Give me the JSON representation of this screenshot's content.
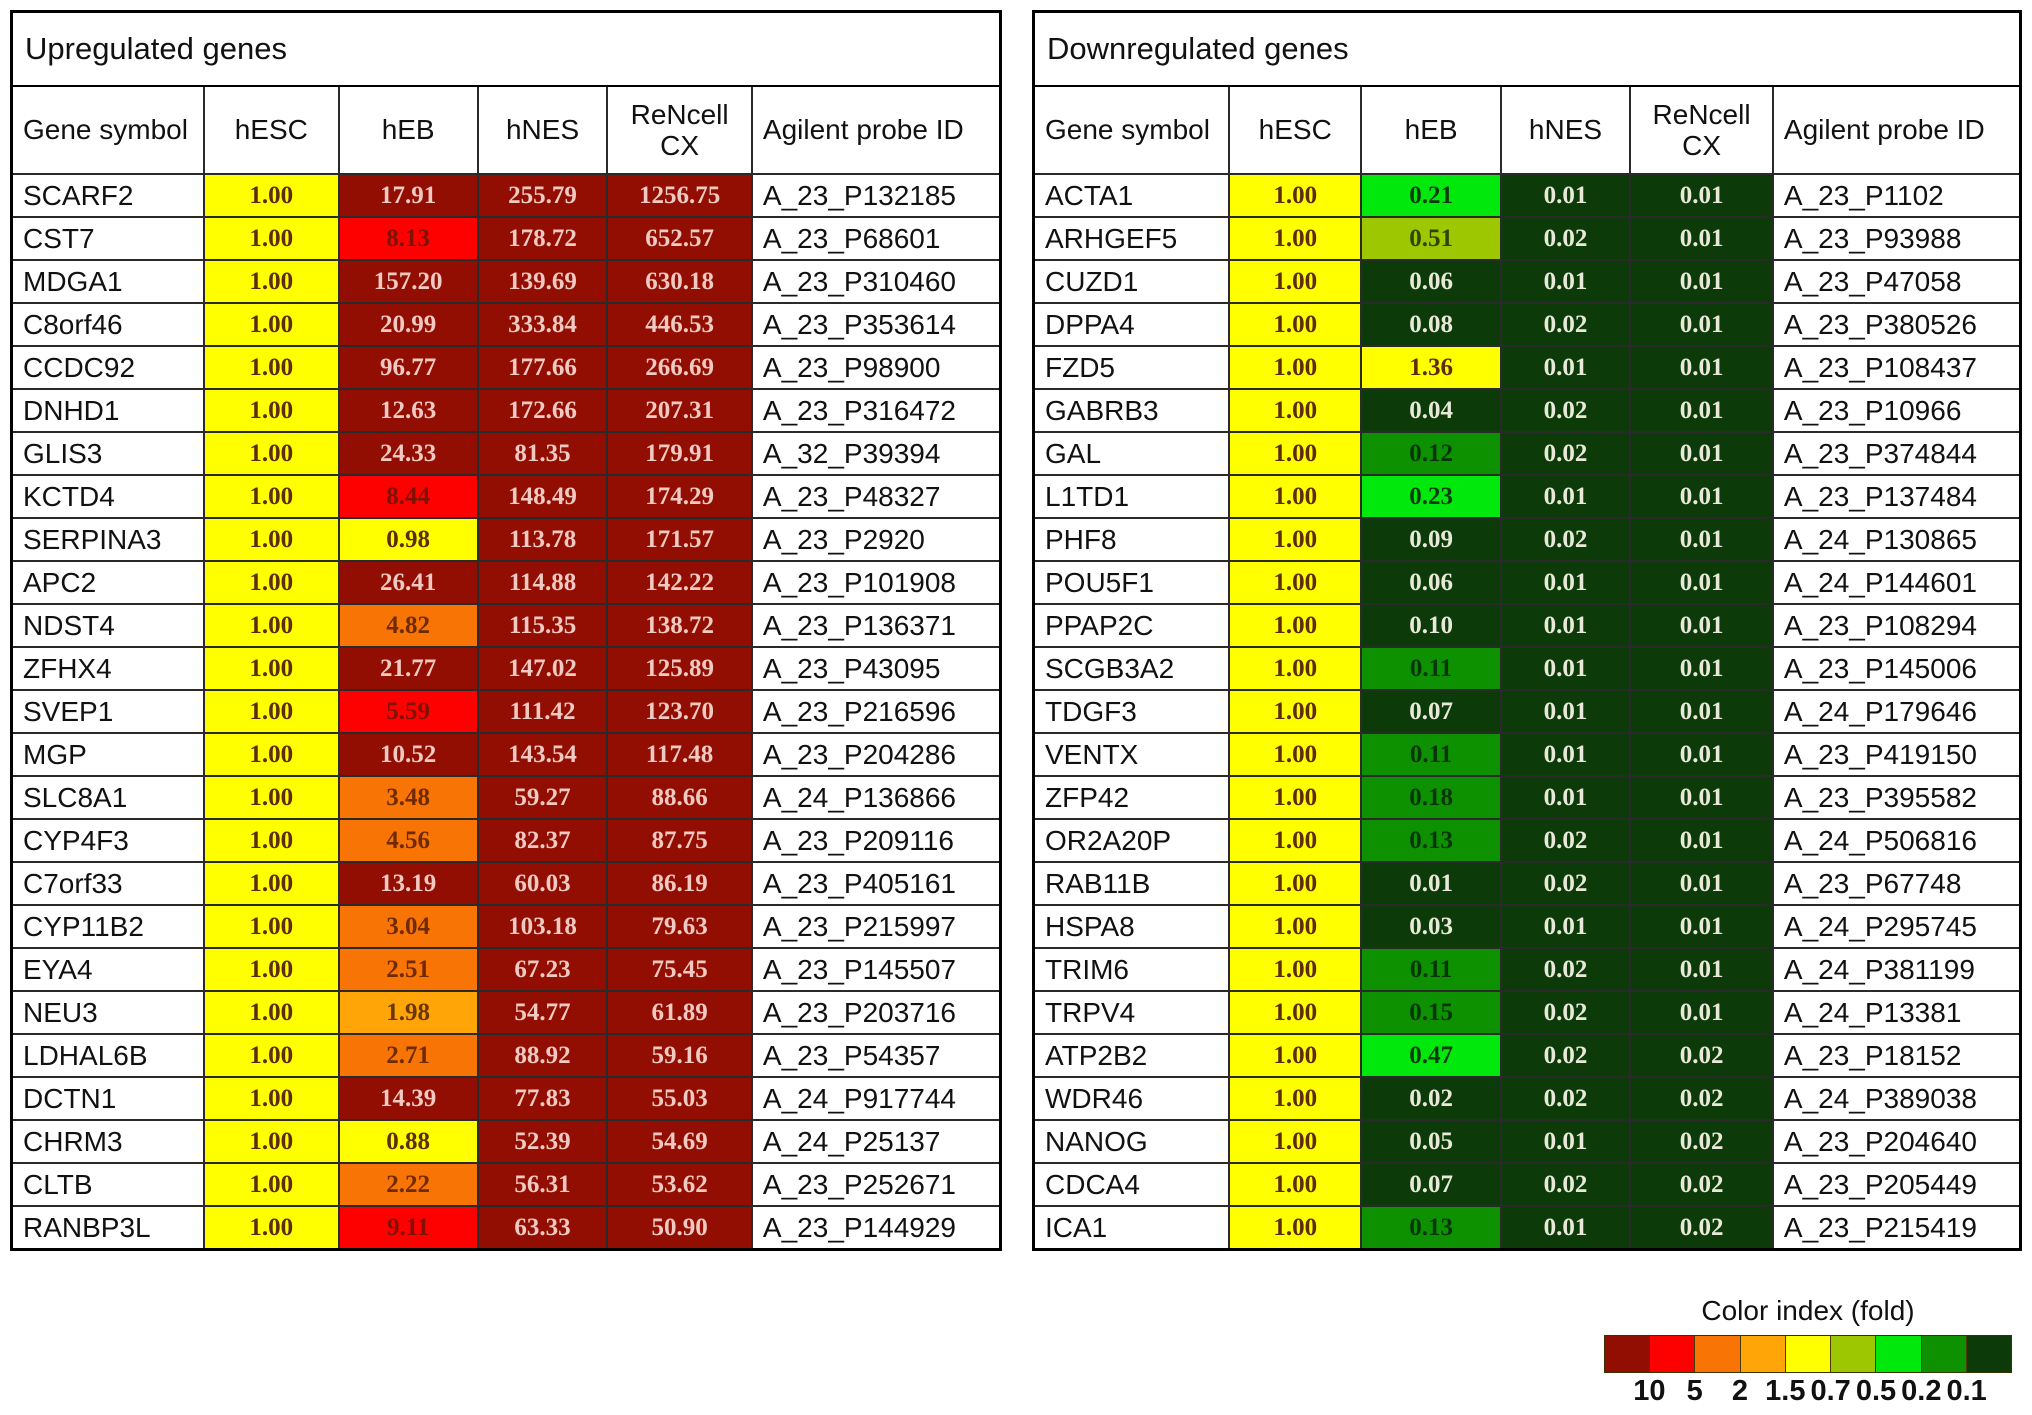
{
  "chart_data": [
    {
      "type": "heatmap",
      "title": "Upregulated genes",
      "columns": [
        "Gene symbol",
        "hESC",
        "hEB",
        "hNES",
        "ReNcell CX",
        "Agilent probe ID"
      ],
      "rows": [
        [
          "SCARF2",
          "1.00",
          "17.91",
          "255.79",
          "1256.75",
          "A_23_P132185"
        ],
        [
          "CST7",
          "1.00",
          "8.13",
          "178.72",
          "652.57",
          "A_23_P68601"
        ],
        [
          "MDGA1",
          "1.00",
          "157.20",
          "139.69",
          "630.18",
          "A_23_P310460"
        ],
        [
          "C8orf46",
          "1.00",
          "20.99",
          "333.84",
          "446.53",
          "A_23_P353614"
        ],
        [
          "CCDC92",
          "1.00",
          "96.77",
          "177.66",
          "266.69",
          "A_23_P98900"
        ],
        [
          "DNHD1",
          "1.00",
          "12.63",
          "172.66",
          "207.31",
          "A_23_P316472"
        ],
        [
          "GLIS3",
          "1.00",
          "24.33",
          "81.35",
          "179.91",
          "A_32_P39394"
        ],
        [
          "KCTD4",
          "1.00",
          "8.44",
          "148.49",
          "174.29",
          "A_23_P48327"
        ],
        [
          "SERPINA3",
          "1.00",
          "0.98",
          "113.78",
          "171.57",
          "A_23_P2920"
        ],
        [
          "APC2",
          "1.00",
          "26.41",
          "114.88",
          "142.22",
          "A_23_P101908"
        ],
        [
          "NDST4",
          "1.00",
          "4.82",
          "115.35",
          "138.72",
          "A_23_P136371"
        ],
        [
          "ZFHX4",
          "1.00",
          "21.77",
          "147.02",
          "125.89",
          "A_23_P43095"
        ],
        [
          "SVEP1",
          "1.00",
          "5.59",
          "111.42",
          "123.70",
          "A_23_P216596"
        ],
        [
          "MGP",
          "1.00",
          "10.52",
          "143.54",
          "117.48",
          "A_23_P204286"
        ],
        [
          "SLC8A1",
          "1.00",
          "3.48",
          "59.27",
          "88.66",
          "A_24_P136866"
        ],
        [
          "CYP4F3",
          "1.00",
          "4.56",
          "82.37",
          "87.75",
          "A_23_P209116"
        ],
        [
          "C7orf33",
          "1.00",
          "13.19",
          "60.03",
          "86.19",
          "A_23_P405161"
        ],
        [
          "CYP11B2",
          "1.00",
          "3.04",
          "103.18",
          "79.63",
          "A_23_P215997"
        ],
        [
          "EYA4",
          "1.00",
          "2.51",
          "67.23",
          "75.45",
          "A_23_P145507"
        ],
        [
          "NEU3",
          "1.00",
          "1.98",
          "54.77",
          "61.89",
          "A_23_P203716"
        ],
        [
          "LDHAL6B",
          "1.00",
          "2.71",
          "88.92",
          "59.16",
          "A_23_P54357"
        ],
        [
          "DCTN1",
          "1.00",
          "14.39",
          "77.83",
          "55.03",
          "A_24_P917744"
        ],
        [
          "CHRM3",
          "1.00",
          "0.88",
          "52.39",
          "54.69",
          "A_24_P25137"
        ],
        [
          "CLTB",
          "1.00",
          "2.22",
          "56.31",
          "53.62",
          "A_23_P252671"
        ],
        [
          "RANBP3L",
          "1.00",
          "9.11",
          "63.33",
          "50.90",
          "A_23_P144929"
        ]
      ]
    },
    {
      "type": "heatmap",
      "title": "Downregulated genes",
      "columns": [
        "Gene symbol",
        "hESC",
        "hEB",
        "hNES",
        "ReNcell CX",
        "Agilent probe ID"
      ],
      "rows": [
        [
          "ACTA1",
          "1.00",
          "0.21",
          "0.01",
          "0.01",
          "A_23_P1102"
        ],
        [
          "ARHGEF5",
          "1.00",
          "0.51",
          "0.02",
          "0.01",
          "A_23_P93988"
        ],
        [
          "CUZD1",
          "1.00",
          "0.06",
          "0.01",
          "0.01",
          "A_23_P47058"
        ],
        [
          "DPPA4",
          "1.00",
          "0.08",
          "0.02",
          "0.01",
          "A_23_P380526"
        ],
        [
          "FZD5",
          "1.00",
          "1.36",
          "0.01",
          "0.01",
          "A_23_P108437"
        ],
        [
          "GABRB3",
          "1.00",
          "0.04",
          "0.02",
          "0.01",
          "A_23_P10966"
        ],
        [
          "GAL",
          "1.00",
          "0.12",
          "0.02",
          "0.01",
          "A_23_P374844"
        ],
        [
          "L1TD1",
          "1.00",
          "0.23",
          "0.01",
          "0.01",
          "A_23_P137484"
        ],
        [
          "PHF8",
          "1.00",
          "0.09",
          "0.02",
          "0.01",
          "A_24_P130865"
        ],
        [
          "POU5F1",
          "1.00",
          "0.06",
          "0.01",
          "0.01",
          "A_24_P144601"
        ],
        [
          "PPAP2C",
          "1.00",
          "0.10",
          "0.01",
          "0.01",
          "A_23_P108294"
        ],
        [
          "SCGB3A2",
          "1.00",
          "0.11",
          "0.01",
          "0.01",
          "A_23_P145006"
        ],
        [
          "TDGF3",
          "1.00",
          "0.07",
          "0.01",
          "0.01",
          "A_24_P179646"
        ],
        [
          "VENTX",
          "1.00",
          "0.11",
          "0.01",
          "0.01",
          "A_23_P419150"
        ],
        [
          "ZFP42",
          "1.00",
          "0.18",
          "0.01",
          "0.01",
          "A_23_P395582"
        ],
        [
          "OR2A20P",
          "1.00",
          "0.13",
          "0.02",
          "0.01",
          "A_24_P506816"
        ],
        [
          "RAB11B",
          "1.00",
          "0.01",
          "0.02",
          "0.01",
          "A_23_P67748"
        ],
        [
          "HSPA8",
          "1.00",
          "0.03",
          "0.01",
          "0.01",
          "A_24_P295745"
        ],
        [
          "TRIM6",
          "1.00",
          "0.11",
          "0.02",
          "0.01",
          "A_24_P381199"
        ],
        [
          "TRPV4",
          "1.00",
          "0.15",
          "0.02",
          "0.01",
          "A_24_P13381"
        ],
        [
          "ATP2B2",
          "1.00",
          "0.47",
          "0.02",
          "0.02",
          "A_23_P18152"
        ],
        [
          "WDR46",
          "1.00",
          "0.02",
          "0.02",
          "0.02",
          "A_24_P389038"
        ],
        [
          "NANOG",
          "1.00",
          "0.05",
          "0.01",
          "0.02",
          "A_23_P204640"
        ],
        [
          "CDCA4",
          "1.00",
          "0.07",
          "0.02",
          "0.02",
          "A_23_P205449"
        ],
        [
          "ICA1",
          "1.00",
          "0.13",
          "0.01",
          "0.02",
          "A_23_P215419"
        ]
      ]
    }
  ],
  "legend": {
    "title": "Color index (fold)",
    "labels": [
      "10",
      "5",
      "2",
      "1.5",
      "0.7",
      "0.5",
      "0.2",
      "0.1"
    ],
    "colors": [
      "#930E02",
      "#FC0100",
      "#F87405",
      "#FFA507",
      "#FFFF00",
      "#9DC801",
      "#01E80D",
      "#0E9100",
      "#0C3A08"
    ],
    "text_colors": [
      "#F0C9C2",
      "#801000",
      "#702A00",
      "#6B3600",
      "#5E2C04",
      "#2F4400",
      "#0B3B0B",
      "#06350A",
      "#E9E9DA"
    ],
    "thresholds": [
      10,
      5,
      2,
      1.5,
      0.7,
      0.5,
      0.2,
      0.1
    ]
  }
}
